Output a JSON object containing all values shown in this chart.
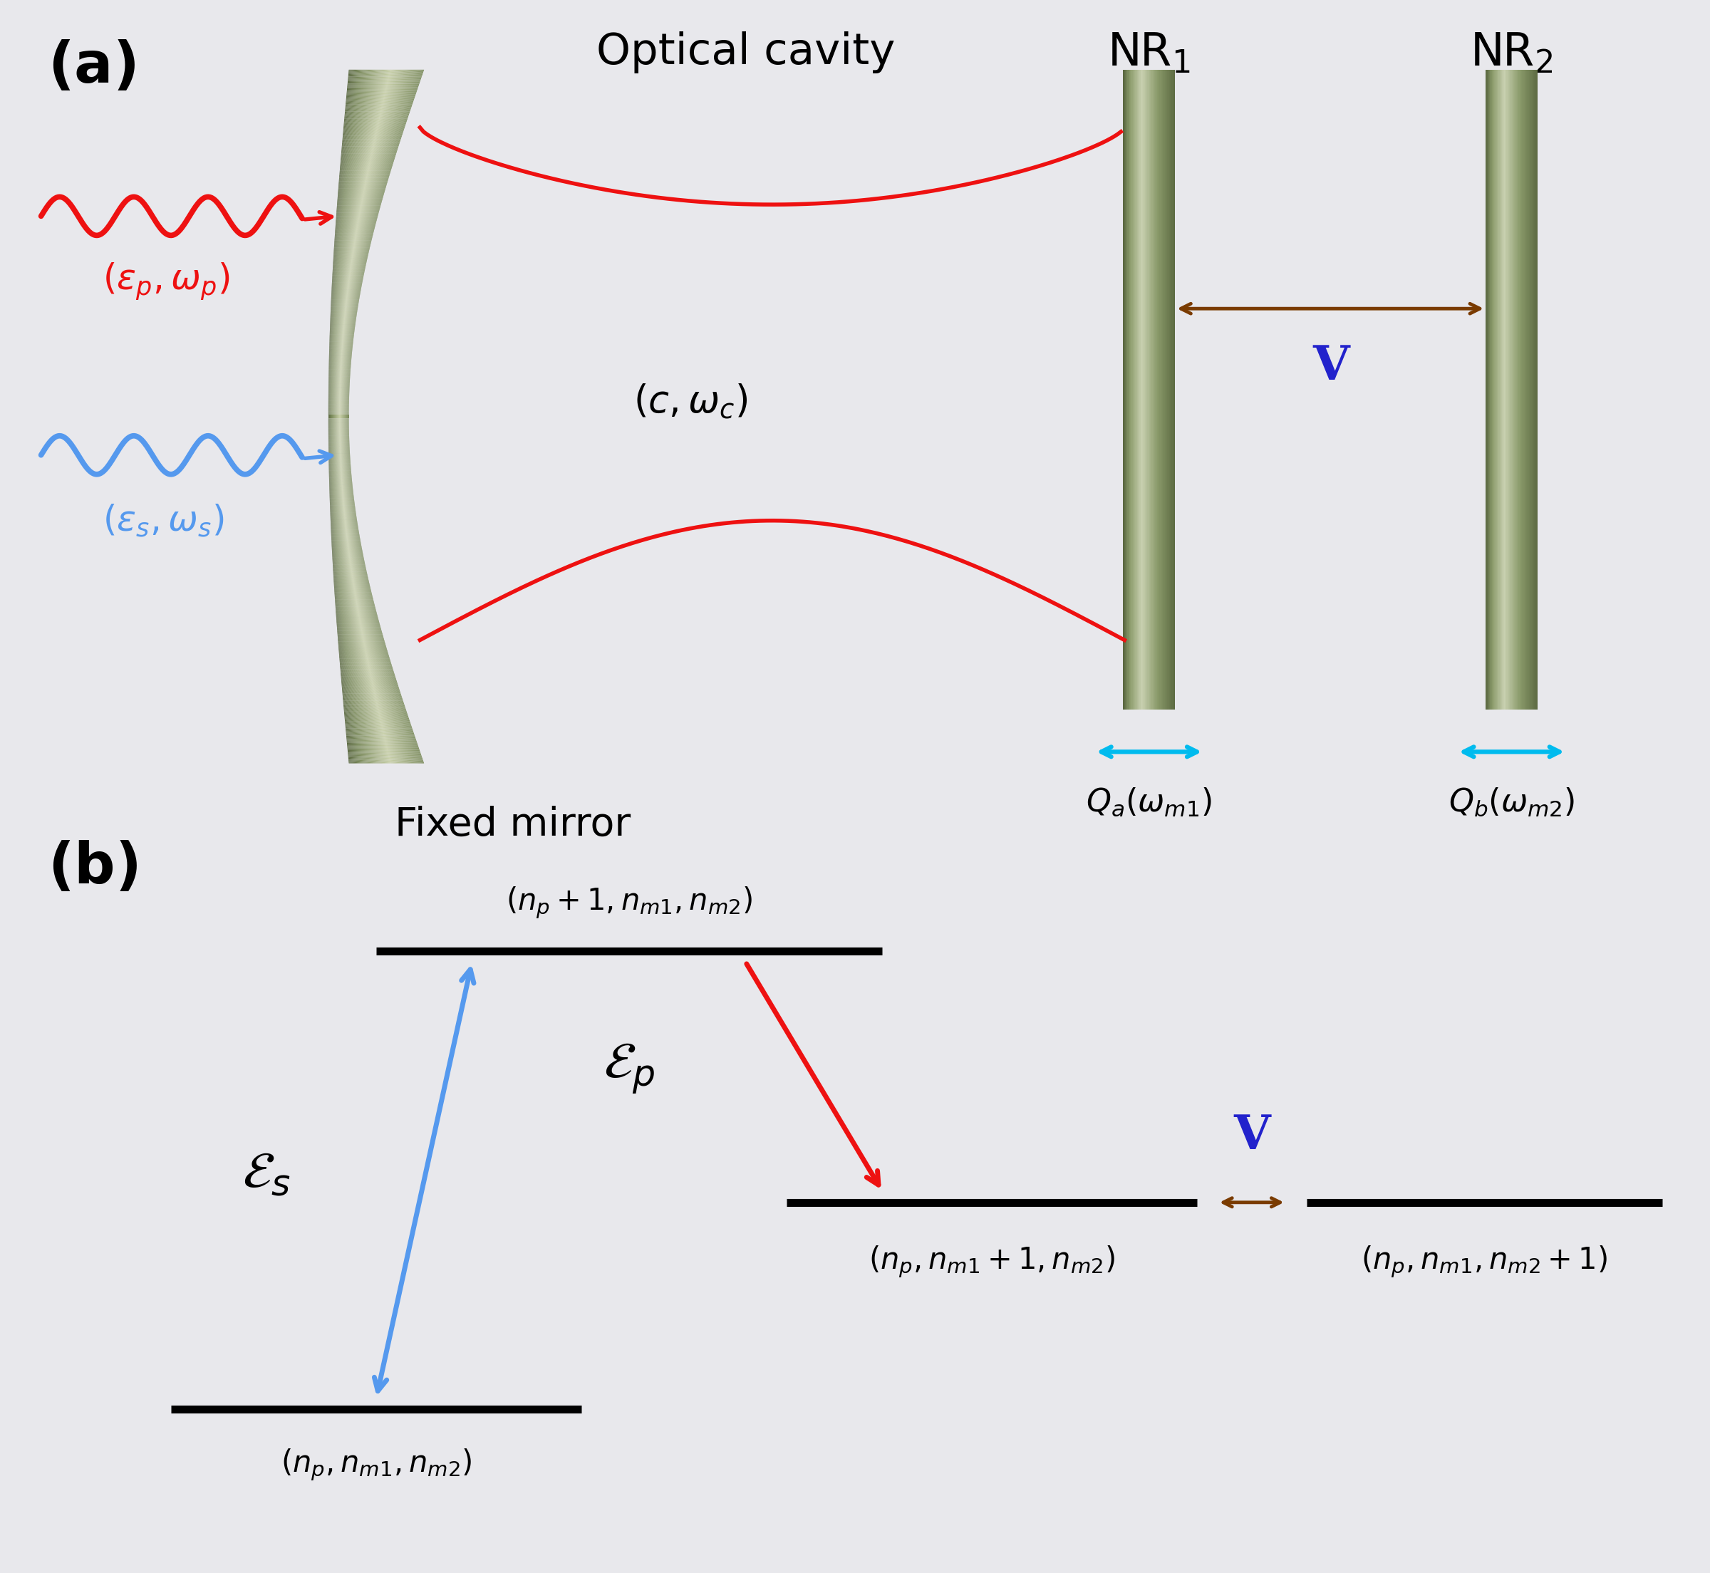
{
  "bg_color": "#e8e8ec",
  "black": "#000000",
  "white": "#ffffff",
  "mirror_dark": "#5a6840",
  "mirror_mid": "#7a8a5a",
  "mirror_light": "#c8d0a8",
  "nr_dark": "#5a6840",
  "nr_mid": "#8a9a6a",
  "nr_light": "#c8d0b0",
  "red_color": "#ee1111",
  "blue_color": "#5599ee",
  "brown_color": "#7a3b00",
  "cyan_color": "#00bbee",
  "blue_v": "#2222cc"
}
